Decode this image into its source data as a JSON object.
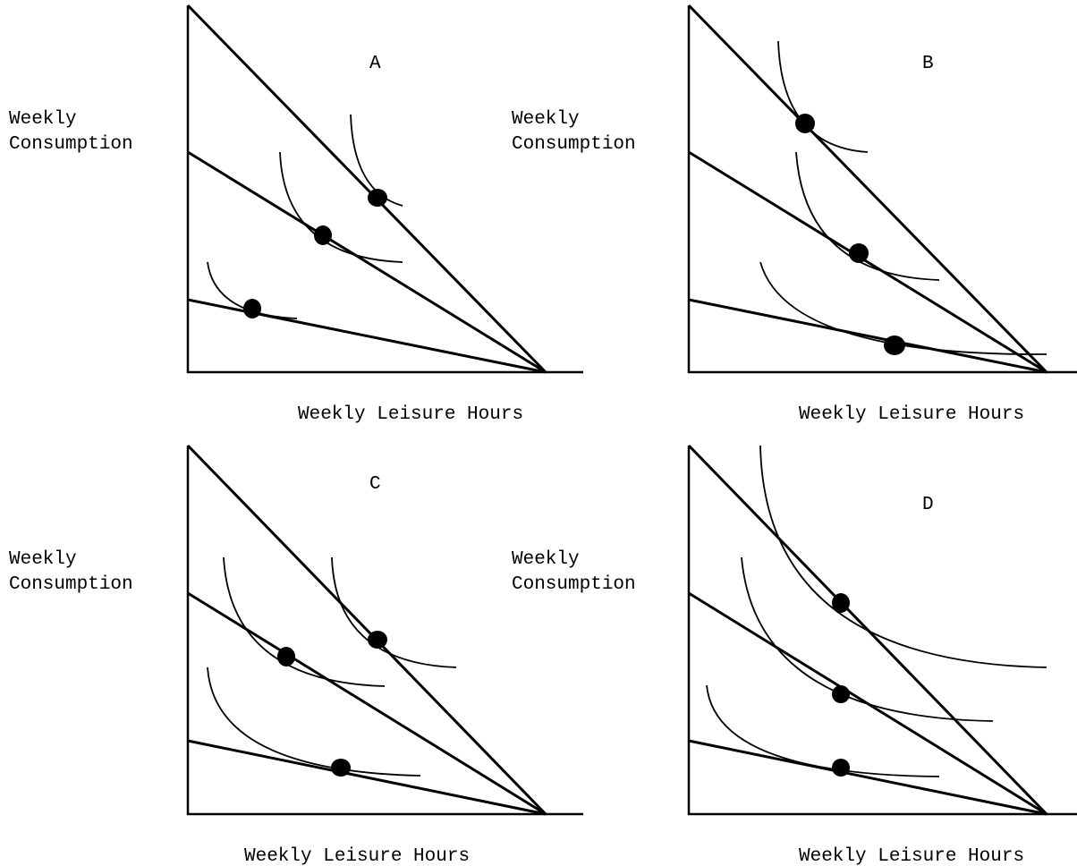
{
  "panels": [
    {
      "id": "A",
      "label": "A",
      "y_label_line1": "Weekly",
      "y_label_line2": "Consumption",
      "x_label": "Weekly Leisure Hours"
    },
    {
      "id": "B",
      "label": "B",
      "y_label_line1": "Weekly",
      "y_label_line2": "Consumption",
      "x_label": "Weekly Leisure Hours"
    },
    {
      "id": "C",
      "label": "C",
      "y_label_line1": "Weekly",
      "y_label_line2": "Consumption",
      "x_label": "Weekly Leisure Hours"
    },
    {
      "id": "D",
      "label": "D",
      "y_label_line1": "Weekly",
      "y_label_line2": "Consumption",
      "x_label": "Weekly Leisure Hours"
    }
  ]
}
